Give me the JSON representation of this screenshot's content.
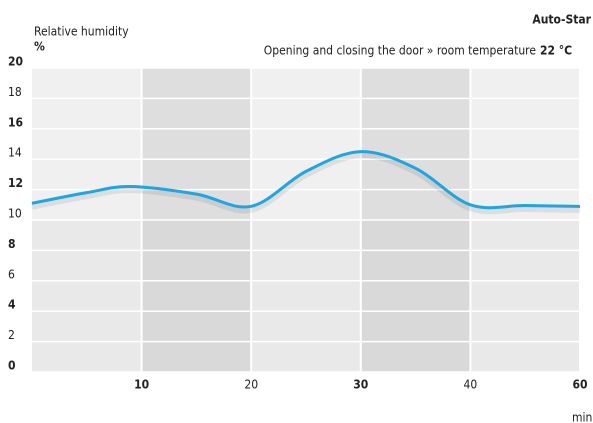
{
  "chart_data": {
    "type": "line",
    "title": "Auto-Star",
    "subtitle": "Opening and closing the door » room temperature",
    "subtitle_value": "22 °C",
    "y_label": "Relative humidity",
    "y_unit": "%",
    "x_label": "min",
    "x": [
      0,
      5,
      9,
      15,
      20,
      25,
      30,
      35,
      40,
      50,
      60
    ],
    "series": [
      {
        "name": "Relative humidity",
        "color": "#1aa7e6",
        "values": [
          11.1,
          11.8,
          12.2,
          11.7,
          10.9,
          13.2,
          14.5,
          13.4,
          11.0,
          10.95,
          10.9
        ]
      }
    ],
    "xlim": [
      0,
      60
    ],
    "xticks": [
      10,
      20,
      30,
      40,
      60
    ],
    "ylim": [
      0,
      20
    ],
    "yticks": [
      0,
      2,
      4,
      6,
      8,
      10,
      12,
      14,
      16,
      18,
      20
    ]
  }
}
